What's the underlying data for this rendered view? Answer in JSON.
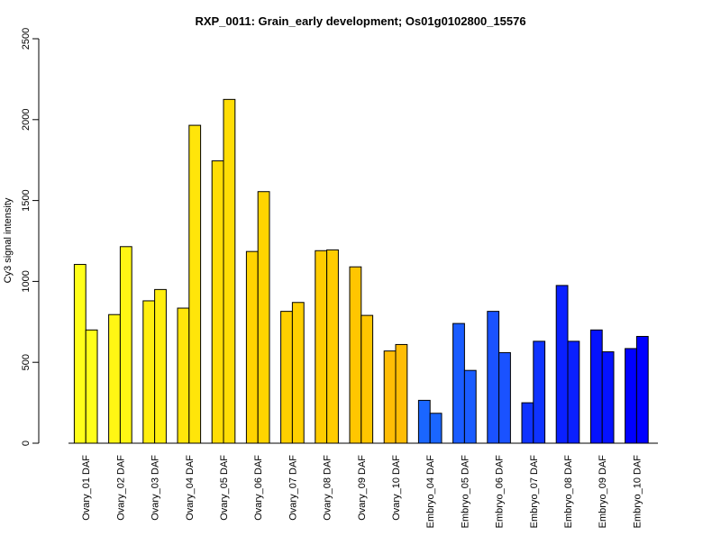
{
  "chart_data": {
    "type": "bar",
    "title": "RXP_0011: Grain_early development; Os01g0102800_15576",
    "xlabel": "",
    "ylabel": "Cy3 signal intensity",
    "ylim": [
      0,
      2500
    ],
    "yticks": [
      0,
      500,
      1000,
      1500,
      2000,
      2500
    ],
    "grid": false,
    "legend": "none",
    "bars_per_group": 2,
    "categories": [
      "Ovary_01 DAF",
      "Ovary_02 DAF",
      "Ovary_03 DAF",
      "Ovary_04 DAF",
      "Ovary_05 DAF",
      "Ovary_06 DAF",
      "Ovary_07 DAF",
      "Ovary_08 DAF",
      "Ovary_09 DAF",
      "Ovary_10 DAF",
      "Embryo_04 DAF",
      "Embryo_05 DAF",
      "Embryo_06 DAF",
      "Embryo_07 DAF",
      "Embryo_08 DAF",
      "Embryo_09 DAF",
      "Embryo_10 DAF"
    ],
    "values": [
      [
        1105,
        700
      ],
      [
        795,
        1215
      ],
      [
        880,
        950
      ],
      [
        835,
        1965
      ],
      [
        1745,
        2125
      ],
      [
        1185,
        1555
      ],
      [
        815,
        870
      ],
      [
        1190,
        1195
      ],
      [
        1090,
        790
      ],
      [
        570,
        610
      ],
      [
        265,
        185
      ],
      [
        740,
        450
      ],
      [
        815,
        560
      ],
      [
        250,
        630
      ],
      [
        975,
        630
      ],
      [
        700,
        565
      ],
      [
        585,
        660
      ]
    ],
    "colors": [
      "#ffff1a",
      "#fff614",
      "#ffee0f",
      "#ffe50a",
      "#ffdd05",
      "#ffd400",
      "#ffd000",
      "#ffcc00",
      "#ffc600",
      "#ffbd05",
      "#1a66ff",
      "#1a5cff",
      "#1a52ff",
      "#0f33ff",
      "#0a20ff",
      "#0512ff",
      "#0000ff"
    ]
  }
}
